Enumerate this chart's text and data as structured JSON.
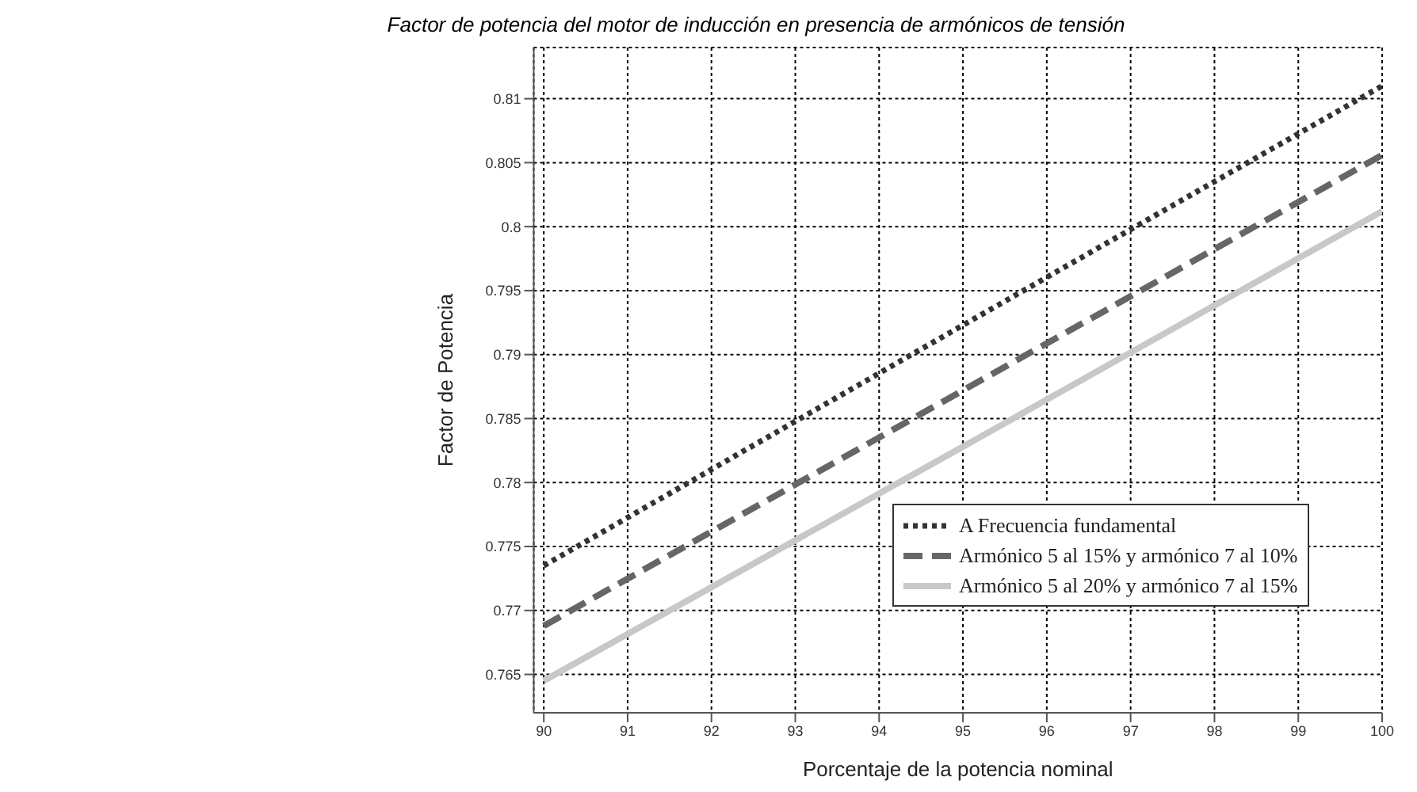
{
  "chart_data": {
    "type": "line",
    "title": "Factor de potencia del motor de inducción en presencia de armónicos de tensión",
    "xlabel": "Porcentaje de la potencia nominal",
    "ylabel": "Factor de Potencia",
    "x": [
      90,
      95,
      100
    ],
    "series": [
      {
        "name": "A Frecuencia fundamental",
        "color": "#333333",
        "line_style": "dotted",
        "values": [
          0.7735,
          0.7923,
          0.811
        ]
      },
      {
        "name": "Armónico 5 al 15% y armónico 7 al 10%",
        "color": "#666666",
        "line_style": "dashed",
        "values": [
          0.7688,
          0.7872,
          0.8056
        ]
      },
      {
        "name": "Armónico 5 al 20% y armónico 7 al 15%",
        "color": "#c8c8c8",
        "line_style": "solid",
        "values": [
          0.7645,
          0.7828,
          0.8012
        ]
      }
    ],
    "xlim": [
      89.88,
      100
    ],
    "xticks": [
      90,
      91,
      92,
      93,
      94,
      95,
      96,
      97,
      98,
      99,
      100
    ],
    "ylim": [
      0.762,
      0.814
    ],
    "yticks": [
      0.765,
      0.77,
      0.775,
      0.78,
      0.785,
      0.79,
      0.795,
      0.8,
      0.805,
      0.81
    ],
    "grid": true,
    "legend": "right",
    "marker": "none"
  }
}
